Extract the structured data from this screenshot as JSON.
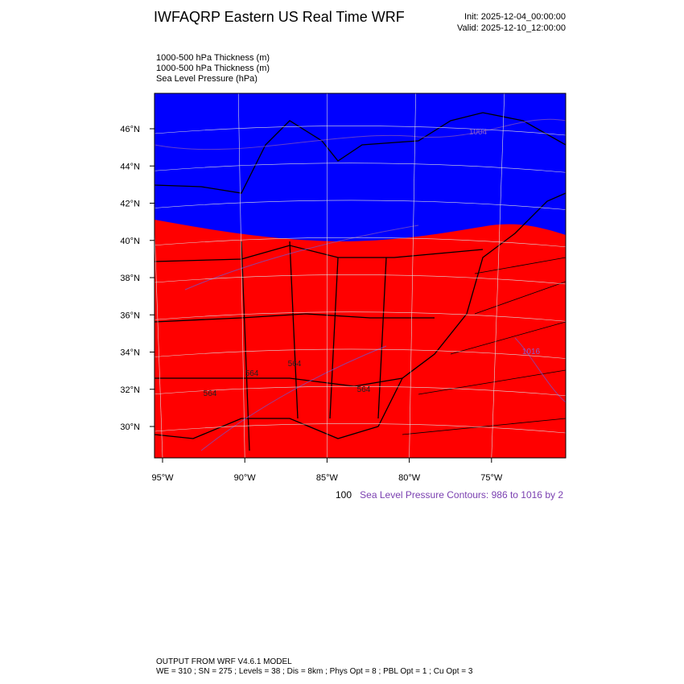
{
  "header": {
    "title": "IWFAQRP Eastern US Real Time WRF",
    "init": "Init: 2025-12-04_00:00:00",
    "valid": "Valid: 2025-12-10_12:00:00"
  },
  "fields": [
    "1000-500 hPa Thickness   (m)",
    "1000-500 hPa Thickness   (m)",
    "Sea Level Pressure   (hPa)"
  ],
  "map": {
    "lat_labels": [
      "46°N",
      "44°N",
      "42°N",
      "40°N",
      "38°N",
      "36°N",
      "34°N",
      "32°N",
      "30°N"
    ],
    "lon_labels": [
      "95°W",
      "90°W",
      "85°W",
      "80°W",
      "75°W"
    ],
    "contour_labels": [
      "1004",
      "564",
      "564",
      "564",
      "564",
      "1016"
    ]
  },
  "legend": {
    "lead": "100",
    "text": "Sea Level Pressure Contours: 986 to 1016 by 2"
  },
  "footer": {
    "line1": "OUTPUT FROM WRF V4.6.1 MODEL",
    "line2": "WE = 310 ; SN = 275 ; Levels = 38 ; Dis = 8km ; Phys Opt = 8 ; PBL Opt = 1 ; Cu Opt = 3"
  }
}
